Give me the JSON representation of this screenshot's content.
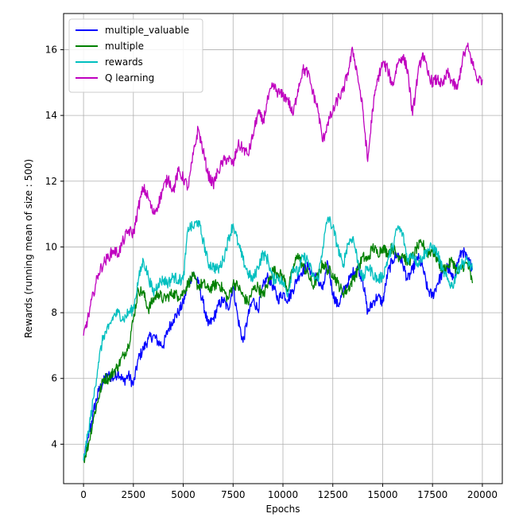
{
  "chart_data": {
    "type": "line",
    "title": "",
    "xlabel": "Epochs",
    "ylabel": "Rewards (running mean of size : 500)",
    "xlim": [
      -1000,
      21000
    ],
    "ylim": [
      2.8,
      17.1
    ],
    "xticks": [
      0,
      2500,
      5000,
      7500,
      10000,
      12500,
      15000,
      17500,
      20000
    ],
    "yticks": [
      4,
      6,
      8,
      10,
      12,
      14,
      16
    ],
    "grid": true,
    "legend_position": "top-left",
    "series": [
      {
        "name": "multiple_valuable",
        "color": "#0000ff",
        "x": [
          0,
          250,
          500,
          750,
          1000,
          1250,
          1500,
          1750,
          2000,
          2250,
          2500,
          2750,
          3000,
          3250,
          3500,
          3750,
          4000,
          4250,
          4500,
          4750,
          5000,
          5250,
          5500,
          5750,
          6000,
          6250,
          6500,
          6750,
          7000,
          7250,
          7500,
          7750,
          8000,
          8250,
          8500,
          8750,
          9000,
          9250,
          9500,
          9750,
          10000,
          10250,
          10500,
          10750,
          11000,
          11250,
          11500,
          11750,
          12000,
          12250,
          12500,
          12750,
          13000,
          13250,
          13500,
          13750,
          14000,
          14250,
          14500,
          14750,
          15000,
          15250,
          15500,
          15750,
          16000,
          16250,
          16500,
          16750,
          17000,
          17250,
          17500,
          17750,
          18000,
          18250,
          18500,
          18750,
          19000,
          19250,
          19500
        ],
        "y": [
          3.5,
          4.2,
          5.0,
          5.6,
          5.9,
          6.1,
          6.0,
          6.2,
          5.9,
          6.1,
          5.8,
          6.6,
          6.9,
          7.2,
          7.3,
          7.1,
          7.0,
          7.5,
          7.8,
          8.0,
          8.3,
          8.9,
          9.2,
          8.9,
          8.3,
          7.6,
          7.8,
          8.2,
          8.4,
          8.1,
          8.8,
          7.8,
          7.1,
          7.9,
          8.4,
          8.1,
          8.8,
          9.1,
          8.8,
          8.4,
          8.6,
          8.4,
          8.7,
          9.1,
          9.3,
          9.4,
          9.2,
          9.0,
          8.7,
          9.5,
          8.6,
          8.2,
          8.6,
          8.9,
          9.2,
          9.4,
          9.0,
          8.0,
          8.3,
          8.5,
          8.3,
          9.2,
          9.6,
          9.8,
          9.5,
          9.0,
          9.3,
          9.7,
          9.4,
          8.7,
          8.5,
          8.9,
          9.2,
          9.4,
          9.0,
          9.5,
          9.9,
          9.6,
          9.4
        ]
      },
      {
        "name": "multiple",
        "color": "#008000",
        "x": [
          0,
          250,
          500,
          750,
          1000,
          1250,
          1500,
          1750,
          2000,
          2250,
          2500,
          2750,
          3000,
          3250,
          3500,
          3750,
          4000,
          4250,
          4500,
          4750,
          5000,
          5250,
          5500,
          5750,
          6000,
          6250,
          6500,
          6750,
          7000,
          7250,
          7500,
          7750,
          8000,
          8250,
          8500,
          8750,
          9000,
          9250,
          9500,
          9750,
          10000,
          10250,
          10500,
          10750,
          11000,
          11250,
          11500,
          11750,
          12000,
          12250,
          12500,
          12750,
          13000,
          13250,
          13500,
          13750,
          14000,
          14250,
          14500,
          14750,
          15000,
          15250,
          15500,
          15750,
          16000,
          16250,
          16500,
          16750,
          17000,
          17250,
          17500,
          17750,
          18000,
          18250,
          18500,
          18750,
          19000,
          19250,
          19500
        ],
        "y": [
          3.5,
          4.0,
          4.8,
          5.4,
          6.0,
          6.0,
          6.2,
          6.4,
          6.7,
          7.0,
          7.8,
          8.7,
          8.6,
          8.1,
          8.4,
          8.6,
          8.4,
          8.5,
          8.6,
          8.5,
          8.6,
          8.9,
          9.1,
          8.8,
          8.9,
          8.7,
          8.8,
          8.9,
          8.7,
          8.4,
          8.9,
          8.8,
          8.5,
          8.3,
          8.7,
          8.8,
          8.5,
          8.9,
          9.3,
          9.2,
          9.1,
          8.7,
          9.3,
          9.8,
          9.4,
          9.2,
          8.8,
          9.1,
          9.5,
          9.3,
          9.2,
          8.9,
          8.6,
          8.7,
          9.0,
          9.3,
          9.7,
          9.6,
          10.0,
          9.8,
          10.0,
          9.8,
          10.0,
          9.7,
          9.8,
          9.5,
          9.7,
          10.0,
          10.1,
          9.8,
          9.9,
          9.6,
          9.3,
          9.4,
          9.6,
          9.2,
          9.4,
          9.5,
          8.9
        ]
      },
      {
        "name": "rewards",
        "color": "#00bfbf",
        "x": [
          0,
          250,
          500,
          750,
          1000,
          1250,
          1500,
          1750,
          2000,
          2250,
          2500,
          2750,
          3000,
          3250,
          3500,
          3750,
          4000,
          4250,
          4500,
          4750,
          5000,
          5250,
          5500,
          5750,
          6000,
          6250,
          6500,
          6750,
          7000,
          7250,
          7500,
          7750,
          8000,
          8250,
          8500,
          8750,
          9000,
          9250,
          9500,
          9750,
          10000,
          10250,
          10500,
          10750,
          11000,
          11250,
          11500,
          11750,
          12000,
          12250,
          12500,
          12750,
          13000,
          13250,
          13500,
          13750,
          14000,
          14250,
          14500,
          14750,
          15000,
          15250,
          15500,
          15750,
          16000,
          16250,
          16500,
          16750,
          17000,
          17250,
          17500,
          17750,
          18000,
          18250,
          18500,
          18750,
          19000,
          19250,
          19500
        ],
        "y": [
          3.5,
          4.4,
          5.4,
          6.5,
          7.3,
          7.5,
          7.9,
          8.0,
          7.8,
          8.0,
          8.1,
          9.0,
          9.6,
          9.1,
          8.6,
          8.9,
          9.0,
          8.9,
          9.1,
          9.0,
          9.0,
          10.6,
          10.6,
          10.8,
          10.2,
          9.5,
          9.4,
          9.3,
          9.6,
          10.2,
          10.7,
          10.1,
          9.6,
          9.2,
          9.0,
          9.4,
          9.8,
          9.6,
          9.0,
          9.1,
          8.9,
          8.6,
          9.4,
          9.2,
          9.7,
          9.6,
          9.1,
          9.0,
          10.0,
          10.9,
          10.6,
          10.0,
          9.4,
          10.1,
          10.3,
          9.6,
          9.0,
          9.4,
          9.2,
          9.0,
          9.1,
          9.6,
          10.0,
          10.6,
          10.4,
          9.6,
          9.8,
          9.5,
          9.7,
          9.9,
          10.0,
          9.8,
          9.3,
          9.0,
          8.8,
          9.3,
          9.5,
          9.6,
          9.3
        ]
      },
      {
        "name": "Q learning",
        "color": "#bf00bf",
        "x": [
          0,
          250,
          500,
          750,
          1000,
          1250,
          1500,
          1750,
          2000,
          2250,
          2500,
          2750,
          3000,
          3250,
          3500,
          3750,
          4000,
          4250,
          4500,
          4750,
          5000,
          5250,
          5500,
          5750,
          6000,
          6250,
          6500,
          6750,
          7000,
          7250,
          7500,
          7750,
          8000,
          8250,
          8500,
          8750,
          9000,
          9250,
          9500,
          9750,
          10000,
          10250,
          10500,
          10750,
          11000,
          11250,
          11500,
          11750,
          12000,
          12250,
          12500,
          12750,
          13000,
          13250,
          13500,
          13750,
          14000,
          14250,
          14500,
          14750,
          15000,
          15250,
          15500,
          15750,
          16000,
          16250,
          16500,
          16750,
          17000,
          17250,
          17500,
          17750,
          18000,
          18250,
          18500,
          18750,
          19000,
          19250,
          19500,
          19750,
          20000
        ],
        "y": [
          7.3,
          7.9,
          8.6,
          9.2,
          9.5,
          9.7,
          9.9,
          9.8,
          10.2,
          10.5,
          10.4,
          11.2,
          11.8,
          11.5,
          11.0,
          11.3,
          11.8,
          12.1,
          11.7,
          12.3,
          12.1,
          11.8,
          12.8,
          13.6,
          12.9,
          12.2,
          11.9,
          12.3,
          12.6,
          12.7,
          12.5,
          13.1,
          13.0,
          12.8,
          13.4,
          14.1,
          13.8,
          14.5,
          14.9,
          14.7,
          14.6,
          14.5,
          14.0,
          14.8,
          15.4,
          15.3,
          14.7,
          14.2,
          13.2,
          13.8,
          14.1,
          14.5,
          14.7,
          15.3,
          16.0,
          15.2,
          14.2,
          12.6,
          14.2,
          15.1,
          15.6,
          15.4,
          14.9,
          15.6,
          15.8,
          15.4,
          14.0,
          15.2,
          15.9,
          15.3,
          15.0,
          15.1,
          14.9,
          15.3,
          15.0,
          14.8,
          15.7,
          16.1,
          15.6,
          15.1,
          15.1
        ]
      }
    ]
  }
}
